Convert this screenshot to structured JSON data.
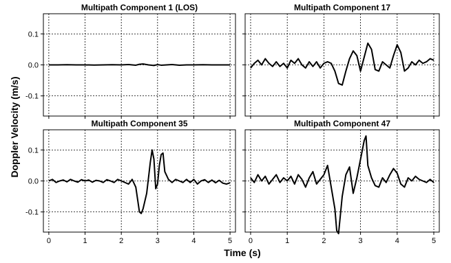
{
  "figure": {
    "xlabel": "Time (s)",
    "ylabel": "Doppler Velocity (m/s)"
  },
  "chart_data": [
    {
      "type": "line",
      "title": "Multipath Component 1 (LOS)",
      "xlim": [
        -0.15,
        5.15
      ],
      "ylim": [
        -0.165,
        0.165
      ],
      "xticks": [
        0,
        1,
        2,
        3,
        4,
        5
      ],
      "yticks": [
        -0.1,
        0.0,
        0.1
      ],
      "xticklabels": [
        "0",
        "1",
        "2",
        "3",
        "4",
        "5"
      ],
      "yticklabels": [
        "-0.1",
        "0.0",
        "0.1"
      ],
      "grid": true,
      "series": [
        {
          "x": [
            0,
            0.25,
            0.5,
            0.75,
            1.0,
            1.25,
            1.5,
            1.75,
            2.0,
            2.2,
            2.4,
            2.5,
            2.6,
            2.75,
            2.9,
            3.0,
            3.1,
            3.25,
            3.4,
            3.6,
            3.8,
            4.0,
            4.25,
            4.5,
            4.75,
            5.0
          ],
          "y": [
            0.0,
            0.0,
            0.0005,
            0.0,
            0.0,
            -0.0005,
            0.0,
            0.0005,
            0.0,
            0.001,
            -0.001,
            0.002,
            0.003,
            0.0,
            -0.002,
            0.001,
            -0.001,
            0.0,
            0.001,
            -0.001,
            0.0,
            0.0,
            0.0005,
            0.0,
            0.0,
            0.0
          ]
        }
      ]
    },
    {
      "type": "line",
      "title": "Multipath Component 17",
      "xlim": [
        -0.15,
        5.15
      ],
      "ylim": [
        -0.165,
        0.165
      ],
      "xticks": [
        0,
        1,
        2,
        3,
        4,
        5
      ],
      "yticks": [
        -0.1,
        0.0,
        0.1
      ],
      "xticklabels": [
        "0",
        "1",
        "2",
        "3",
        "4",
        "5"
      ],
      "yticklabels": [
        "-0.1",
        "0.0",
        "0.1"
      ],
      "grid": true,
      "series": [
        {
          "x": [
            0,
            0.1,
            0.2,
            0.3,
            0.4,
            0.5,
            0.6,
            0.7,
            0.8,
            0.9,
            1.0,
            1.1,
            1.2,
            1.3,
            1.4,
            1.5,
            1.6,
            1.7,
            1.8,
            1.9,
            2.0,
            2.1,
            2.2,
            2.3,
            2.4,
            2.5,
            2.6,
            2.7,
            2.8,
            2.9,
            3.0,
            3.1,
            3.2,
            3.3,
            3.4,
            3.5,
            3.6,
            3.7,
            3.8,
            3.9,
            4.0,
            4.1,
            4.2,
            4.3,
            4.4,
            4.5,
            4.6,
            4.7,
            4.8,
            4.9,
            5.0
          ],
          "y": [
            -0.01,
            0.005,
            0.015,
            0.0,
            0.02,
            0.005,
            -0.005,
            0.01,
            -0.005,
            0.005,
            -0.01,
            0.015,
            0.005,
            0.02,
            0.0,
            -0.01,
            0.01,
            -0.005,
            0.01,
            -0.01,
            0.005,
            0.01,
            0.005,
            -0.02,
            -0.06,
            -0.065,
            -0.02,
            0.02,
            0.045,
            0.03,
            -0.02,
            0.025,
            0.07,
            0.05,
            -0.015,
            -0.02,
            0.01,
            0.0,
            -0.01,
            0.03,
            0.065,
            0.04,
            -0.02,
            -0.01,
            0.01,
            0.0,
            0.015,
            0.005,
            0.01,
            0.02,
            0.015
          ]
        }
      ]
    },
    {
      "type": "line",
      "title": "Multipath Component 35",
      "xlim": [
        -0.15,
        5.15
      ],
      "ylim": [
        -0.165,
        0.165
      ],
      "xticks": [
        0,
        1,
        2,
        3,
        4,
        5
      ],
      "yticks": [
        -0.1,
        0.0,
        0.1
      ],
      "xticklabels": [
        "0",
        "1",
        "2",
        "3",
        "4",
        "5"
      ],
      "yticklabels": [
        "-0.1",
        "0.0",
        "0.1"
      ],
      "grid": true,
      "series": [
        {
          "x": [
            0,
            0.1,
            0.2,
            0.3,
            0.4,
            0.5,
            0.6,
            0.7,
            0.8,
            0.9,
            1.0,
            1.1,
            1.2,
            1.3,
            1.4,
            1.5,
            1.6,
            1.7,
            1.8,
            1.9,
            2.0,
            2.1,
            2.2,
            2.3,
            2.4,
            2.5,
            2.55,
            2.6,
            2.7,
            2.8,
            2.85,
            2.9,
            2.95,
            3.0,
            3.05,
            3.1,
            3.15,
            3.2,
            3.3,
            3.4,
            3.5,
            3.6,
            3.7,
            3.8,
            3.9,
            4.0,
            4.1,
            4.2,
            4.3,
            4.4,
            4.5,
            4.6,
            4.7,
            4.8,
            4.9,
            5.0
          ],
          "y": [
            0.0,
            0.005,
            -0.005,
            0.0,
            0.003,
            -0.003,
            0.005,
            0.0,
            -0.004,
            0.004,
            0.0,
            0.003,
            -0.004,
            0.002,
            0.0,
            -0.005,
            0.004,
            0.0,
            -0.005,
            0.005,
            0.0,
            -0.005,
            -0.01,
            0.005,
            -0.02,
            -0.1,
            -0.105,
            -0.09,
            -0.04,
            0.06,
            0.1,
            0.07,
            -0.025,
            -0.01,
            0.05,
            0.085,
            0.09,
            0.03,
            0.005,
            -0.005,
            0.005,
            0.0,
            -0.005,
            0.005,
            -0.005,
            0.005,
            -0.01,
            0.0,
            0.004,
            -0.005,
            0.003,
            -0.006,
            0.002,
            -0.007,
            -0.01,
            -0.006
          ]
        }
      ]
    },
    {
      "type": "line",
      "title": "Multipath Component 47",
      "xlim": [
        -0.15,
        5.15
      ],
      "ylim": [
        -0.165,
        0.165
      ],
      "xticks": [
        0,
        1,
        2,
        3,
        4,
        5
      ],
      "yticks": [
        -0.1,
        0.0,
        0.1
      ],
      "xticklabels": [
        "0",
        "1",
        "2",
        "3",
        "4",
        "5"
      ],
      "yticklabels": [
        "-0.1",
        "0.0",
        "0.1"
      ],
      "grid": true,
      "series": [
        {
          "x": [
            0,
            0.1,
            0.2,
            0.3,
            0.4,
            0.5,
            0.6,
            0.7,
            0.8,
            0.9,
            1.0,
            1.1,
            1.2,
            1.3,
            1.4,
            1.5,
            1.6,
            1.7,
            1.8,
            1.9,
            2.0,
            2.1,
            2.2,
            2.3,
            2.35,
            2.4,
            2.5,
            2.6,
            2.7,
            2.8,
            2.9,
            3.0,
            3.1,
            3.15,
            3.2,
            3.3,
            3.4,
            3.5,
            3.6,
            3.7,
            3.8,
            3.9,
            4.0,
            4.1,
            4.2,
            4.3,
            4.4,
            4.5,
            4.6,
            4.7,
            4.8,
            4.9,
            5.0
          ],
          "y": [
            0.01,
            -0.005,
            0.02,
            0.0,
            0.015,
            -0.01,
            0.005,
            0.02,
            -0.005,
            0.01,
            0.0,
            0.015,
            -0.01,
            0.02,
            0.005,
            -0.02,
            0.01,
            0.03,
            -0.01,
            0.005,
            0.02,
            0.05,
            -0.02,
            -0.09,
            -0.16,
            -0.17,
            -0.05,
            0.02,
            0.045,
            -0.04,
            0.01,
            0.07,
            0.13,
            0.145,
            0.05,
            0.01,
            -0.015,
            -0.02,
            0.01,
            -0.005,
            0.02,
            0.04,
            0.025,
            -0.01,
            -0.02,
            0.01,
            0.0,
            0.015,
            0.005,
            0.0,
            -0.005,
            0.005,
            -0.005
          ]
        }
      ]
    }
  ]
}
